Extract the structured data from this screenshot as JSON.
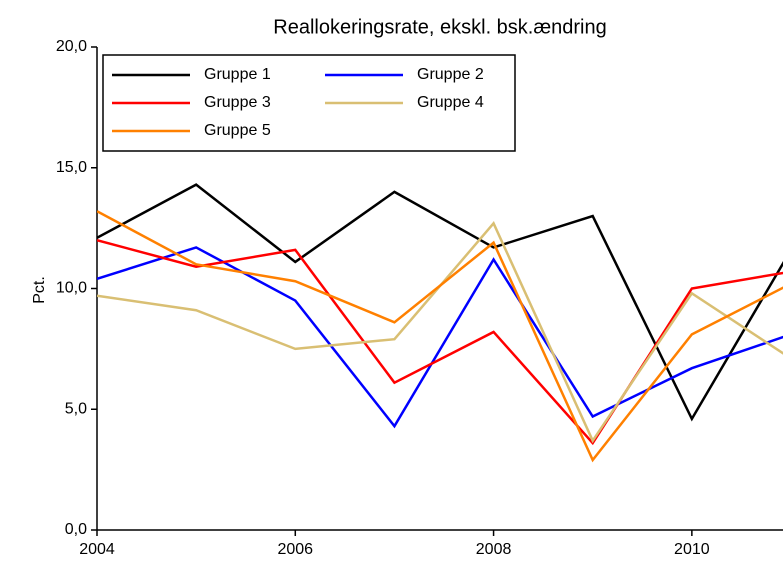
{
  "chart_data": {
    "type": "line",
    "title": "Reallokeringsrate, ekskl. bsk.ændring",
    "y_label": "Pct.",
    "x": [
      2004,
      2005,
      2006,
      2007,
      2008,
      2009,
      2010,
      2011
    ],
    "xlim": [
      2004,
      2011
    ],
    "xticks": [
      2004,
      2006,
      2008,
      2010
    ],
    "ylim": [
      0,
      20
    ],
    "yticks": [
      {
        "value": 0,
        "label": "0,0"
      },
      {
        "value": 5,
        "label": "5,0"
      },
      {
        "value": 10,
        "label": "10,0"
      },
      {
        "value": 15,
        "label": "15,0"
      },
      {
        "value": 20,
        "label": "20,0"
      }
    ],
    "legend": "upper left",
    "series": [
      {
        "name": "Gruppe 1",
        "color": "#000000",
        "values": [
          12.1,
          14.3,
          11.1,
          14.0,
          11.7,
          13.0,
          4.6,
          11.6
        ]
      },
      {
        "name": "Gruppe 2",
        "color": "#0000ff",
        "values": [
          10.4,
          11.7,
          9.5,
          4.3,
          11.2,
          4.7,
          6.7,
          8.1
        ]
      },
      {
        "name": "Gruppe 3",
        "color": "#ff0000",
        "values": [
          12.0,
          10.9,
          11.6,
          6.1,
          8.2,
          3.6,
          10.0,
          10.7
        ]
      },
      {
        "name": "Gruppe 4",
        "color": "#d9bf73",
        "values": [
          9.7,
          9.1,
          7.5,
          7.9,
          12.7,
          3.7,
          9.8,
          7.1
        ]
      },
      {
        "name": "Gruppe 5",
        "color": "#ff8000",
        "values": [
          13.2,
          11.0,
          10.3,
          8.6,
          11.9,
          2.9,
          8.1,
          10.2
        ]
      }
    ]
  }
}
